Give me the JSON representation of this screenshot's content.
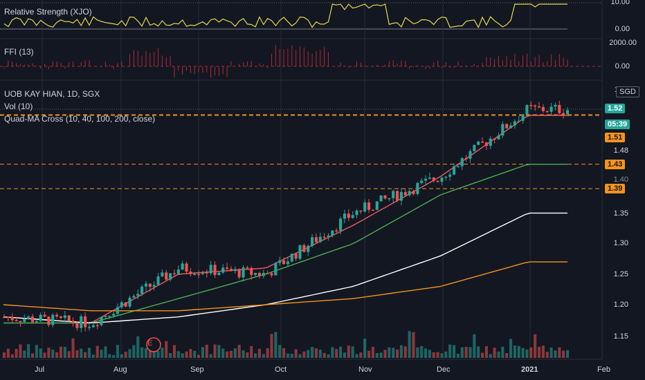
{
  "colors": {
    "bg": "#131722",
    "grid": "#2a2e39",
    "up": "#26a69a",
    "down": "#ef5350",
    "rs_line": "#e5d84a",
    "ffi": "#b22833",
    "ma10": "#f05d5e",
    "ma40": "#4caf50",
    "ma100": "#ffffff",
    "ma200": "#f7931a",
    "support": "#f7931a",
    "price_tag": "#26a69a"
  },
  "rs_panel": {
    "title": "Relative Strength (XJO)",
    "ticks": [
      "10.00",
      "0.00"
    ]
  },
  "ffi_panel": {
    "title": "FFI (13)",
    "ticks": [
      "2000.00",
      "0.00"
    ]
  },
  "main_panel": {
    "symbol_line": "UOB KAY HIAN, 1D, SGX",
    "vol_line": "Vol (10)",
    "ma_line": "Quad-MA Cross (10, 40, 100, 200, close)",
    "currency": "SGD",
    "corner_mark": "1",
    "earnings_marker": "E",
    "price_tag": "1.52",
    "countdown_tag": "05:39",
    "level_tags": [
      "1.51",
      "1.43",
      "1.39"
    ],
    "y_ticks": [
      "1.48",
      "1.40",
      "1.35",
      "1.30",
      "1.25",
      "1.20",
      "1.15"
    ],
    "x_ticks": [
      "Jul",
      "Aug",
      "Sep",
      "Oct",
      "Nov",
      "Dec",
      "2021",
      "Feb"
    ]
  },
  "chart_data": {
    "type": "line",
    "title": "UOB KAY HIAN, 1D, SGX",
    "x_start": "Jun 2020",
    "x_end": "Jan 2021",
    "ylim": [
      1.13,
      1.55
    ],
    "series": [
      {
        "name": "Price (close)",
        "x": [
          "Jul",
          "Aug",
          "Sep",
          "Oct",
          "Nov",
          "Dec",
          "2021"
        ],
        "values": [
          1.18,
          1.17,
          1.26,
          1.25,
          1.35,
          1.41,
          1.52
        ]
      },
      {
        "name": "MA 10",
        "x": [
          "Jul",
          "Aug",
          "Sep",
          "Oct",
          "Nov",
          "Dec",
          "2021"
        ],
        "values": [
          1.18,
          1.17,
          1.25,
          1.26,
          1.33,
          1.41,
          1.51
        ]
      },
      {
        "name": "MA 40",
        "x": [
          "Jul",
          "Aug",
          "Sep",
          "Oct",
          "Nov",
          "Dec",
          "2021"
        ],
        "values": [
          1.17,
          1.17,
          1.21,
          1.25,
          1.3,
          1.38,
          1.43
        ]
      },
      {
        "name": "MA 100",
        "x": [
          "Jul",
          "Aug",
          "Sep",
          "Oct",
          "Nov",
          "Dec",
          "2021"
        ],
        "values": [
          1.18,
          1.17,
          1.18,
          1.2,
          1.23,
          1.28,
          1.35
        ]
      },
      {
        "name": "MA 200",
        "x": [
          "Jul",
          "Aug",
          "Sep",
          "Oct",
          "Nov",
          "Dec",
          "2021"
        ],
        "values": [
          1.2,
          1.19,
          1.19,
          1.2,
          1.21,
          1.23,
          1.27
        ]
      }
    ],
    "levels": [
      1.51,
      1.43,
      1.39
    ],
    "last_price": 1.52,
    "grid": true
  }
}
